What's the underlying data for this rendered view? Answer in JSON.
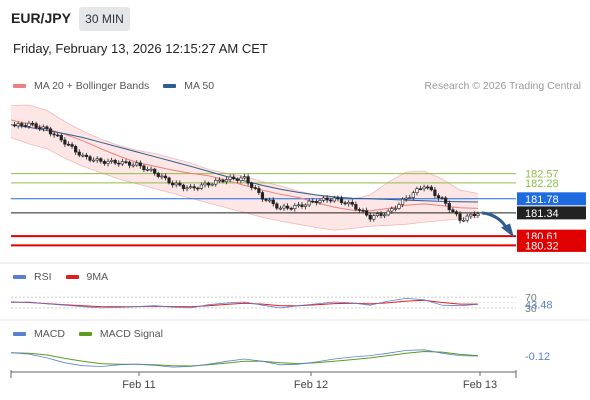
{
  "header": {
    "pair": "EUR/JPY",
    "timeframe": "30 MIN",
    "datetime": "Friday, February 13, 2026 12:15:27 AM CET"
  },
  "legend": {
    "main": [
      {
        "label": "MA 20 + Bollinger Bands",
        "color": "#f08080"
      },
      {
        "label": "MA 50",
        "color": "#2f5d8f"
      }
    ],
    "rsi": [
      {
        "label": "RSI",
        "color": "#5b7fd0"
      },
      {
        "label": "9MA",
        "color": "#e02020"
      }
    ],
    "macd": [
      {
        "label": "MACD",
        "color": "#5b7fd0"
      },
      {
        "label": "MACD Signal",
        "color": "#5a9e1c"
      }
    ]
  },
  "credit": "Research © 2026 Trading Central",
  "chart_data": {
    "type": "candlestick",
    "x_labels": [
      "Feb 11",
      "Feb 12",
      "Feb 13"
    ],
    "price_range": [
      179.8,
      184.5
    ],
    "levels": [
      {
        "value": 182.57,
        "label": "182.57",
        "color": "#8cbf4a",
        "style": "text"
      },
      {
        "value": 182.28,
        "label": "182.28",
        "color": "#8cbf4a",
        "style": "text"
      },
      {
        "value": 181.78,
        "label": "181.78",
        "color": "#1e6be0",
        "style": "box"
      },
      {
        "value": 181.34,
        "label": "181.34",
        "color": "#222222",
        "style": "box"
      },
      {
        "value": 180.61,
        "label": "180.61",
        "color": "#e00000",
        "style": "box"
      },
      {
        "value": 180.32,
        "label": "180.32",
        "color": "#e00000",
        "style": "box"
      }
    ],
    "ma20": [
      184.25,
      184.12,
      183.98,
      183.8,
      183.6,
      183.35,
      183.12,
      182.92,
      182.8,
      182.68,
      182.58,
      182.5,
      182.36,
      182.2,
      182.05,
      181.92,
      181.82,
      181.66,
      181.52,
      181.42,
      181.4,
      181.48,
      181.58,
      181.62,
      181.56,
      181.5,
      181.48
    ],
    "bb_upper": [
      184.7,
      184.72,
      184.55,
      184.2,
      183.9,
      183.65,
      183.45,
      183.3,
      183.2,
      183.05,
      182.9,
      182.7,
      182.58,
      182.48,
      182.32,
      182.18,
      182.02,
      181.9,
      181.8,
      181.76,
      181.9,
      182.3,
      182.62,
      182.65,
      182.4,
      182.05,
      181.95
    ],
    "bb_lower": [
      183.7,
      183.5,
      183.35,
      183.05,
      182.8,
      182.6,
      182.4,
      182.25,
      182.1,
      181.95,
      181.8,
      181.65,
      181.5,
      181.35,
      181.2,
      181.08,
      180.98,
      180.88,
      180.8,
      180.85,
      180.92,
      180.95,
      180.98,
      181.05,
      181.1,
      181.15,
      181.2
    ],
    "ma50": [
      184.1,
      184.02,
      183.92,
      183.82,
      183.7,
      183.55,
      183.4,
      183.25,
      183.1,
      182.95,
      182.8,
      182.64,
      182.48,
      182.34,
      182.2,
      182.08,
      181.98,
      181.9,
      181.84,
      181.8,
      181.78,
      181.76,
      181.74,
      181.72,
      181.7,
      181.69,
      181.68
    ],
    "close": [
      184.05,
      184.12,
      183.95,
      183.55,
      183.1,
      182.95,
      182.92,
      182.85,
      182.6,
      182.25,
      182.1,
      182.25,
      182.4,
      182.42,
      181.82,
      181.48,
      181.55,
      181.72,
      181.78,
      181.58,
      181.2,
      181.35,
      181.8,
      182.2,
      181.75,
      181.12,
      181.34
    ],
    "forecast": [
      181.34,
      180.6
    ],
    "rsi": {
      "last": "43.48",
      "levels": [
        "70",
        "30"
      ],
      "values": [
        50,
        52,
        45,
        40,
        35,
        30,
        32,
        35,
        38,
        33,
        30,
        42,
        48,
        52,
        40,
        30,
        38,
        45,
        52,
        48,
        40,
        55,
        65,
        60,
        40,
        38,
        43
      ]
    },
    "rsi_ma": [
      52,
      50,
      46,
      42,
      38,
      35,
      34,
      35,
      36,
      35,
      34,
      38,
      43,
      47,
      44,
      38,
      38,
      42,
      46,
      47,
      45,
      49,
      55,
      58,
      50,
      44,
      44
    ],
    "macd": {
      "last": "-0.12",
      "values": [
        0.0,
        -0.05,
        -0.18,
        -0.35,
        -0.45,
        -0.48,
        -0.42,
        -0.4,
        -0.44,
        -0.5,
        -0.48,
        -0.4,
        -0.3,
        -0.22,
        -0.3,
        -0.42,
        -0.4,
        -0.32,
        -0.22,
        -0.15,
        -0.1,
        -0.02,
        0.08,
        0.1,
        -0.02,
        -0.1,
        -0.12
      ]
    },
    "macd_signal": [
      0.0,
      -0.02,
      -0.08,
      -0.2,
      -0.3,
      -0.38,
      -0.4,
      -0.4,
      -0.42,
      -0.45,
      -0.46,
      -0.42,
      -0.36,
      -0.3,
      -0.3,
      -0.35,
      -0.38,
      -0.35,
      -0.3,
      -0.24,
      -0.18,
      -0.1,
      -0.02,
      0.04,
      0.02,
      -0.06,
      -0.1
    ]
  }
}
